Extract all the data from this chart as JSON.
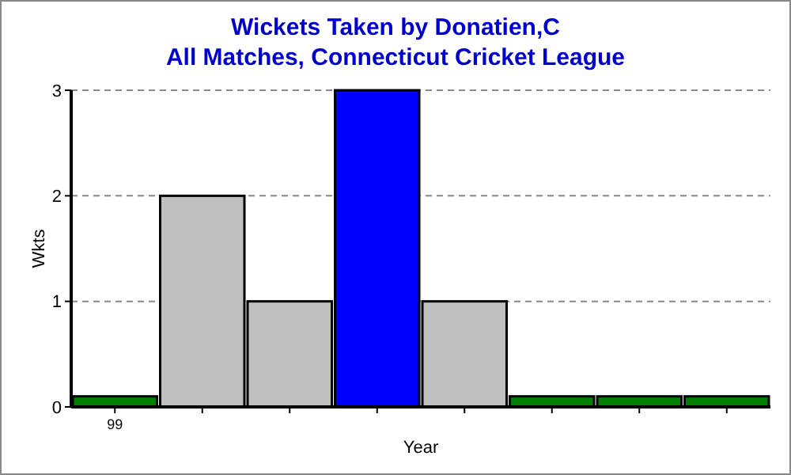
{
  "chart_data": {
    "type": "bar",
    "title": "Wickets Taken by Donatien,C",
    "subtitle": "All Matches, Connecticut Cricket League",
    "xlabel": "Year",
    "ylabel": "Wkts",
    "categories": [
      "99",
      null,
      null,
      null,
      null,
      null,
      null,
      null
    ],
    "values": [
      0.1,
      2,
      1,
      3,
      1,
      0.1,
      0.1,
      0.1
    ],
    "colors": [
      "#007f00",
      "#c0c0c0",
      "#c0c0c0",
      "#0000ff",
      "#c0c0c0",
      "#007f00",
      "#007f00",
      "#007f00"
    ],
    "ylim": [
      0,
      3
    ],
    "yticks": [
      0,
      1,
      2,
      3
    ],
    "grid": "y"
  }
}
